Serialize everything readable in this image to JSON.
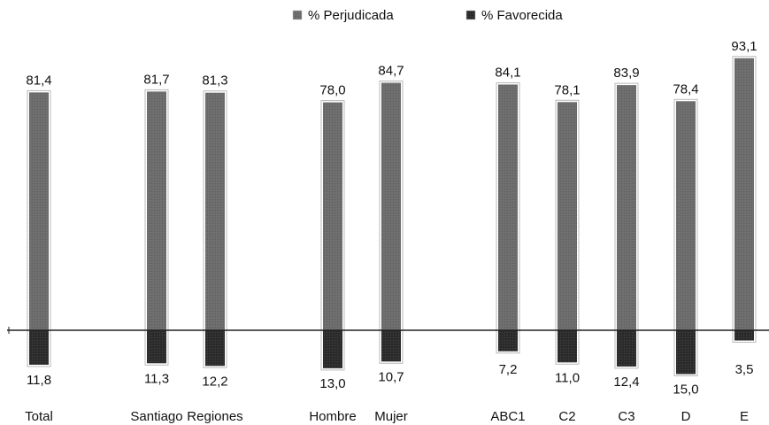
{
  "chart_data": {
    "type": "bar",
    "categories": [
      "Total",
      "Santiago",
      "Regiones",
      "Hombre",
      "Mujer",
      "ABC1",
      "C2",
      "C3",
      "D",
      "E"
    ],
    "series": [
      {
        "name": "% Perjudicada",
        "values": [
          81.4,
          81.7,
          81.3,
          78.0,
          84.7,
          84.1,
          78.1,
          83.9,
          78.4,
          93.1
        ],
        "value_labels": [
          "81,4",
          "81,7",
          "81,3",
          "78,0",
          "84,7",
          "84,1",
          "78,1",
          "83,9",
          "78,4",
          "93,1"
        ]
      },
      {
        "name": "% Favorecida",
        "values": [
          11.8,
          11.3,
          12.2,
          13.0,
          10.7,
          7.2,
          11.0,
          12.4,
          15.0,
          3.5
        ],
        "value_labels": [
          "11,8",
          "11,3",
          "12,2",
          "13,0",
          "10,7",
          "7,2",
          "11,0",
          "12,4",
          "15,0",
          "3,5"
        ]
      }
    ],
    "layout_note": "Perjudicada bars extend upward from the baseline; Favorecida bars extend downward from the same baseline.",
    "groups": [
      [
        "Total"
      ],
      [
        "Santiago",
        "Regiones"
      ],
      [
        "Hombre",
        "Mujer"
      ],
      [
        "ABC1",
        "C2",
        "C3",
        "D",
        "E"
      ]
    ],
    "legend_position": "top-center",
    "grid": false,
    "colors": {
      "perjudicada": "#6f6f6f",
      "favorecida": "#2b2b2b",
      "bar_outline": "#b9b9b9",
      "axis": "#222222"
    }
  }
}
